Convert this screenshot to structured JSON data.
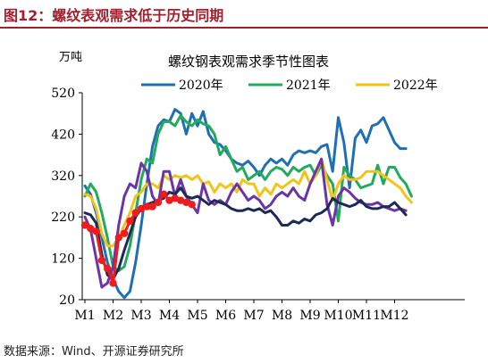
{
  "figure": {
    "heading": "图12：螺纹表观需求低于历史同期",
    "source": "数据来源：Wind、开源证券研究所"
  },
  "chart_data": {
    "type": "line",
    "title": "螺纹钢表观需求季节性图表",
    "ylabel": "万吨",
    "ylim": [
      20,
      520
    ],
    "yticks": [
      20,
      120,
      220,
      320,
      420,
      520
    ],
    "x_tick_labels": [
      "M1",
      "M2",
      "M3",
      "M4",
      "M5",
      "M6",
      "M7",
      "M8",
      "M9",
      "M10",
      "M11",
      "M12"
    ],
    "xlim": [
      1,
      12.6
    ],
    "grid": false,
    "legend_position": "top",
    "series": [
      {
        "name": "2020年",
        "color": "#1f6fb5",
        "points": [
          [
            1.0,
            295
          ],
          [
            1.2,
            275
          ],
          [
            1.4,
            230
          ],
          [
            1.6,
            170
          ],
          [
            1.8,
            110
          ],
          [
            2.0,
            70
          ],
          [
            2.2,
            40
          ],
          [
            2.4,
            25
          ],
          [
            2.6,
            40
          ],
          [
            2.8,
            110
          ],
          [
            3.0,
            200
          ],
          [
            3.2,
            300
          ],
          [
            3.4,
            390
          ],
          [
            3.6,
            440
          ],
          [
            3.8,
            455
          ],
          [
            4.0,
            450
          ],
          [
            4.2,
            480
          ],
          [
            4.4,
            470
          ],
          [
            4.6,
            420
          ],
          [
            4.8,
            470
          ],
          [
            5.0,
            440
          ],
          [
            5.2,
            475
          ],
          [
            5.4,
            420
          ],
          [
            5.6,
            400
          ],
          [
            5.8,
            395
          ],
          [
            6.0,
            380
          ],
          [
            6.2,
            360
          ],
          [
            6.4,
            350
          ],
          [
            6.6,
            345
          ],
          [
            6.8,
            355
          ],
          [
            7.0,
            340
          ],
          [
            7.2,
            320
          ],
          [
            7.4,
            345
          ],
          [
            7.6,
            360
          ],
          [
            7.8,
            350
          ],
          [
            8.0,
            360
          ],
          [
            8.2,
            345
          ],
          [
            8.4,
            370
          ],
          [
            8.6,
            380
          ],
          [
            8.8,
            375
          ],
          [
            9.0,
            380
          ],
          [
            9.2,
            375
          ],
          [
            9.4,
            390
          ],
          [
            9.6,
            395
          ],
          [
            9.8,
            330
          ],
          [
            10.0,
            460
          ],
          [
            10.2,
            400
          ],
          [
            10.4,
            290
          ],
          [
            10.6,
            410
          ],
          [
            10.8,
            430
          ],
          [
            11.0,
            400
          ],
          [
            11.2,
            440
          ],
          [
            11.4,
            445
          ],
          [
            11.6,
            460
          ],
          [
            11.8,
            430
          ],
          [
            12.0,
            400
          ],
          [
            12.2,
            385
          ],
          [
            12.4,
            385
          ]
        ]
      },
      {
        "name": "2021年",
        "color": "#21ac5c",
        "points": [
          [
            1.0,
            270
          ],
          [
            1.2,
            300
          ],
          [
            1.4,
            280
          ],
          [
            1.6,
            230
          ],
          [
            1.8,
            170
          ],
          [
            2.0,
            100
          ],
          [
            2.2,
            90
          ],
          [
            2.4,
            100
          ],
          [
            2.6,
            150
          ],
          [
            2.8,
            230
          ],
          [
            3.0,
            310
          ],
          [
            3.2,
            360
          ],
          [
            3.4,
            350
          ],
          [
            3.6,
            420
          ],
          [
            3.8,
            450
          ],
          [
            4.0,
            450
          ],
          [
            4.2,
            440
          ],
          [
            4.4,
            465
          ],
          [
            4.6,
            450
          ],
          [
            4.8,
            440
          ],
          [
            5.0,
            455
          ],
          [
            5.2,
            445
          ],
          [
            5.4,
            440
          ],
          [
            5.6,
            420
          ],
          [
            5.8,
            370
          ],
          [
            6.0,
            390
          ],
          [
            6.2,
            360
          ],
          [
            6.4,
            330
          ],
          [
            6.6,
            340
          ],
          [
            6.8,
            310
          ],
          [
            7.0,
            320
          ],
          [
            7.2,
            330
          ],
          [
            7.4,
            310
          ],
          [
            7.6,
            330
          ],
          [
            7.8,
            340
          ],
          [
            8.0,
            335
          ],
          [
            8.2,
            320
          ],
          [
            8.4,
            340
          ],
          [
            8.6,
            330
          ],
          [
            8.8,
            340
          ],
          [
            9.0,
            345
          ],
          [
            9.2,
            320
          ],
          [
            9.4,
            345
          ],
          [
            9.6,
            320
          ],
          [
            9.8,
            300
          ],
          [
            10.0,
            210
          ],
          [
            10.2,
            340
          ],
          [
            10.4,
            320
          ],
          [
            10.6,
            310
          ],
          [
            10.8,
            290
          ],
          [
            11.0,
            295
          ],
          [
            11.2,
            300
          ],
          [
            11.4,
            345
          ],
          [
            11.6,
            300
          ],
          [
            11.8,
            340
          ],
          [
            12.0,
            340
          ],
          [
            12.2,
            315
          ],
          [
            12.4,
            300
          ],
          [
            12.6,
            270
          ]
        ]
      },
      {
        "name": "2022年",
        "color": "#f3c318",
        "points": [
          [
            1.0,
            275
          ],
          [
            1.2,
            270
          ],
          [
            1.4,
            240
          ],
          [
            1.6,
            180
          ],
          [
            1.8,
            150
          ],
          [
            2.0,
            150
          ],
          [
            2.2,
            170
          ],
          [
            2.4,
            200
          ],
          [
            2.6,
            230
          ],
          [
            2.8,
            270
          ],
          [
            3.0,
            280
          ],
          [
            3.2,
            300
          ],
          [
            3.4,
            300
          ],
          [
            3.6,
            290
          ],
          [
            3.8,
            320
          ],
          [
            4.0,
            310
          ],
          [
            4.2,
            320
          ],
          [
            4.4,
            315
          ],
          [
            4.6,
            320
          ],
          [
            4.8,
            310
          ],
          [
            5.0,
            320
          ],
          [
            5.2,
            300
          ],
          [
            5.4,
            305
          ],
          [
            5.6,
            280
          ],
          [
            5.8,
            300
          ],
          [
            6.0,
            290
          ],
          [
            6.2,
            300
          ],
          [
            6.4,
            280
          ],
          [
            6.6,
            310
          ],
          [
            6.8,
            300
          ],
          [
            7.0,
            300
          ],
          [
            7.2,
            270
          ],
          [
            7.4,
            290
          ],
          [
            7.6,
            275
          ],
          [
            7.8,
            300
          ],
          [
            8.0,
            290
          ],
          [
            8.2,
            300
          ],
          [
            8.4,
            310
          ],
          [
            8.6,
            300
          ],
          [
            8.8,
            330
          ],
          [
            9.0,
            300
          ],
          [
            9.2,
            320
          ],
          [
            9.4,
            360
          ],
          [
            9.6,
            310
          ],
          [
            9.8,
            260
          ],
          [
            10.0,
            300
          ],
          [
            10.2,
            320
          ],
          [
            10.4,
            310
          ],
          [
            10.6,
            310
          ],
          [
            10.8,
            315
          ],
          [
            11.0,
            330
          ],
          [
            11.2,
            330
          ],
          [
            11.4,
            330
          ],
          [
            11.6,
            320
          ],
          [
            11.8,
            310
          ],
          [
            12.0,
            300
          ],
          [
            12.2,
            290
          ],
          [
            12.4,
            270
          ],
          [
            12.6,
            255
          ]
        ]
      },
      {
        "name": "",
        "color": "#6a35a6",
        "points": [
          [
            1.0,
            220
          ],
          [
            1.2,
            190
          ],
          [
            1.4,
            120
          ],
          [
            1.6,
            50
          ],
          [
            1.8,
            60
          ],
          [
            2.0,
            100
          ],
          [
            2.2,
            200
          ],
          [
            2.4,
            270
          ],
          [
            2.6,
            300
          ],
          [
            2.8,
            290
          ],
          [
            3.0,
            350
          ],
          [
            3.2,
            330
          ],
          [
            3.4,
            270
          ],
          [
            3.6,
            250
          ],
          [
            3.8,
            330
          ],
          [
            4.0,
            330
          ],
          [
            4.2,
            270
          ],
          [
            4.4,
            310
          ],
          [
            4.6,
            270
          ],
          [
            4.8,
            250
          ],
          [
            5.0,
            230
          ],
          [
            5.2,
            300
          ],
          [
            5.4,
            260
          ],
          [
            5.6,
            250
          ],
          [
            5.8,
            260
          ],
          [
            6.0,
            250
          ],
          [
            6.2,
            280
          ],
          [
            6.4,
            300
          ],
          [
            6.6,
            280
          ],
          [
            6.8,
            260
          ],
          [
            7.0,
            270
          ],
          [
            7.2,
            260
          ],
          [
            7.4,
            240
          ],
          [
            7.6,
            250
          ],
          [
            7.8,
            270
          ],
          [
            8.0,
            280
          ],
          [
            8.2,
            270
          ],
          [
            8.4,
            290
          ],
          [
            8.6,
            270
          ],
          [
            8.8,
            260
          ],
          [
            9.0,
            300
          ],
          [
            9.2,
            330
          ],
          [
            9.4,
            360
          ],
          [
            9.6,
            250
          ],
          [
            9.8,
            200
          ],
          [
            10.0,
            270
          ],
          [
            10.2,
            290
          ],
          [
            10.4,
            280
          ],
          [
            10.6,
            265
          ],
          [
            10.8,
            255
          ],
          [
            11.0,
            250
          ],
          [
            11.2,
            250
          ],
          [
            11.4,
            255
          ],
          [
            11.6,
            245
          ],
          [
            11.8,
            240
          ],
          [
            12.0,
            235
          ],
          [
            12.2,
            240
          ],
          [
            12.4,
            235
          ]
        ]
      },
      {
        "name": "",
        "color": "#1c2a55",
        "points": [
          [
            1.0,
            230
          ],
          [
            1.2,
            225
          ],
          [
            1.4,
            205
          ],
          [
            1.6,
            130
          ],
          [
            1.8,
            80
          ],
          [
            2.0,
            70
          ],
          [
            2.2,
            95
          ],
          [
            2.4,
            140
          ],
          [
            2.6,
            180
          ],
          [
            2.8,
            220
          ],
          [
            3.0,
            240
          ],
          [
            3.2,
            250
          ],
          [
            3.4,
            255
          ],
          [
            3.6,
            260
          ],
          [
            3.8,
            265
          ],
          [
            4.0,
            280
          ],
          [
            4.2,
            275
          ],
          [
            4.4,
            290
          ],
          [
            4.6,
            270
          ],
          [
            4.8,
            265
          ],
          [
            5.0,
            270
          ],
          [
            5.2,
            260
          ],
          [
            5.4,
            250
          ],
          [
            5.6,
            260
          ],
          [
            5.8,
            255
          ],
          [
            6.0,
            250
          ],
          [
            6.2,
            240
          ],
          [
            6.4,
            235
          ],
          [
            6.6,
            235
          ],
          [
            6.8,
            240
          ],
          [
            7.0,
            235
          ],
          [
            7.2,
            240
          ],
          [
            7.4,
            230
          ],
          [
            7.6,
            235
          ],
          [
            7.8,
            220
          ],
          [
            8.0,
            200
          ],
          [
            8.2,
            200
          ],
          [
            8.4,
            210
          ],
          [
            8.6,
            205
          ],
          [
            8.8,
            215
          ],
          [
            9.0,
            210
          ],
          [
            9.2,
            225
          ],
          [
            9.4,
            230
          ],
          [
            9.6,
            240
          ],
          [
            9.8,
            265
          ],
          [
            10.0,
            255
          ],
          [
            10.2,
            250
          ],
          [
            10.4,
            245
          ],
          [
            10.6,
            250
          ],
          [
            10.8,
            260
          ],
          [
            11.0,
            245
          ],
          [
            11.2,
            240
          ],
          [
            11.4,
            240
          ],
          [
            11.6,
            245
          ],
          [
            11.8,
            245
          ],
          [
            12.0,
            255
          ],
          [
            12.2,
            240
          ],
          [
            12.4,
            225
          ]
        ]
      },
      {
        "name": "",
        "color": "#ee1c1c",
        "markers": true,
        "points": [
          [
            1.0,
            200
          ],
          [
            1.2,
            192
          ],
          [
            1.4,
            185
          ],
          [
            1.6,
            115
          ],
          [
            1.8,
            95
          ],
          [
            2.0,
            60
          ],
          [
            2.2,
            170
          ],
          [
            2.4,
            180
          ],
          [
            2.6,
            210
          ],
          [
            2.8,
            230
          ],
          [
            3.0,
            240
          ],
          [
            3.2,
            245
          ],
          [
            3.4,
            245
          ],
          [
            3.6,
            255
          ],
          [
            3.8,
            275
          ],
          [
            4.0,
            260
          ],
          [
            4.2,
            265
          ],
          [
            4.4,
            260
          ],
          [
            4.6,
            255
          ],
          [
            4.8,
            250
          ]
        ]
      }
    ]
  }
}
